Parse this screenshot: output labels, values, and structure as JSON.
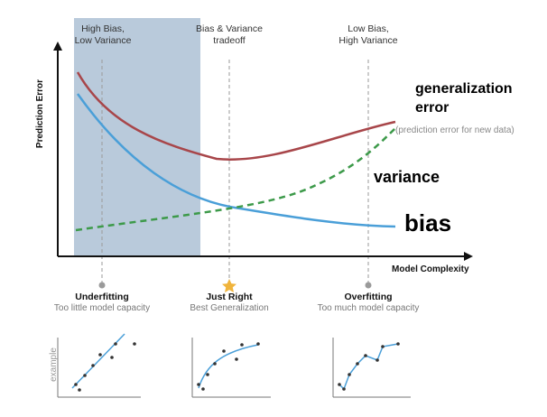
{
  "axes": {
    "y_title": "Prediction Error",
    "x_title": "Model Complexity"
  },
  "zones": [
    {
      "label": "High Bias,\nLow Variance"
    },
    {
      "label": "Bias & Variance\ntradeoff"
    },
    {
      "label": "Low Bias,\nHigh Variance"
    }
  ],
  "curve_labels": {
    "generalization": "generalization\nerror",
    "generalization_note": "(prediction error for new data)",
    "variance": "variance",
    "bias": "bias"
  },
  "cases": [
    {
      "title": "Underfitting",
      "subtitle": "Too little model capacity"
    },
    {
      "title": "Just Right",
      "subtitle": "Best Generalization"
    },
    {
      "title": "Overfitting",
      "subtitle": "Too much model capacity"
    }
  ],
  "example_label": "example",
  "colors": {
    "shade": "#b9cadb",
    "generalization": "#a8464a",
    "bias": "#4a9fd8",
    "variance": "#3d9a4a",
    "star": "#f0b43c",
    "guide": "#9a9a9a"
  }
}
